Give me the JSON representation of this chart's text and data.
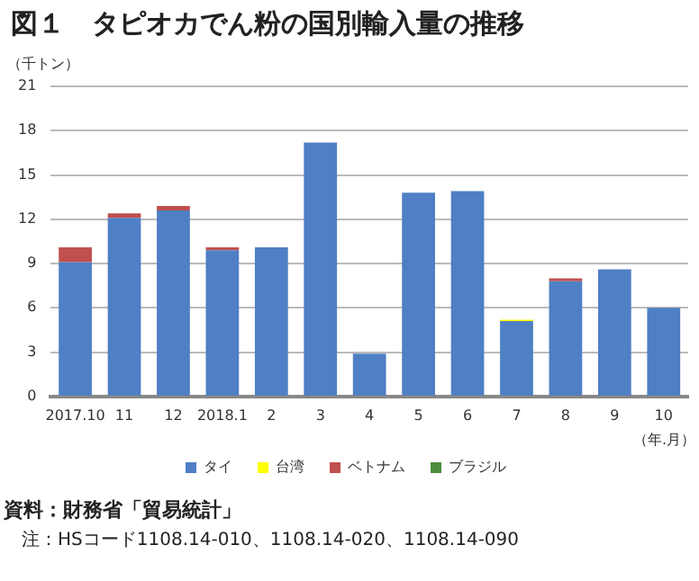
{
  "chart_data": {
    "type": "bar",
    "title": "図１　タピオカでん粉の国別輸入量の推移",
    "ylabel": "（千トン）",
    "xlabel": "（年.月）",
    "categories": [
      "2017.10",
      "11",
      "12",
      "2018.1",
      "2",
      "3",
      "4",
      "5",
      "6",
      "7",
      "8",
      "9",
      "10"
    ],
    "stacked": true,
    "series": [
      {
        "name": "タイ",
        "color": "#4f7fc4",
        "values": [
          9.1,
          12.1,
          12.6,
          9.9,
          10.1,
          17.2,
          2.9,
          13.8,
          13.9,
          5.1,
          7.8,
          8.6,
          6.0
        ]
      },
      {
        "name": "台湾",
        "color": "#ffff00",
        "values": [
          0,
          0,
          0,
          0,
          0,
          0,
          0,
          0,
          0,
          0.1,
          0,
          0,
          0
        ]
      },
      {
        "name": "ベトナム",
        "color": "#c0504d",
        "values": [
          1.0,
          0.3,
          0.3,
          0.2,
          0,
          0,
          0,
          0,
          0,
          0,
          0.2,
          0,
          0
        ]
      },
      {
        "name": "ブラジル",
        "color": "#4e8a3c",
        "values": [
          0,
          0,
          0,
          0,
          0,
          0,
          0,
          0,
          0,
          0,
          0,
          0,
          0
        ]
      }
    ],
    "ylim": [
      0,
      21
    ],
    "yticks": [
      0,
      3,
      6,
      9,
      12,
      15,
      18,
      21
    ],
    "grid": "y",
    "legend": "bottom",
    "annotations": [
      "資料：財務省「貿易統計」",
      "注：HSコード1108.14-010、1108.14-020、1108.14-090"
    ]
  }
}
